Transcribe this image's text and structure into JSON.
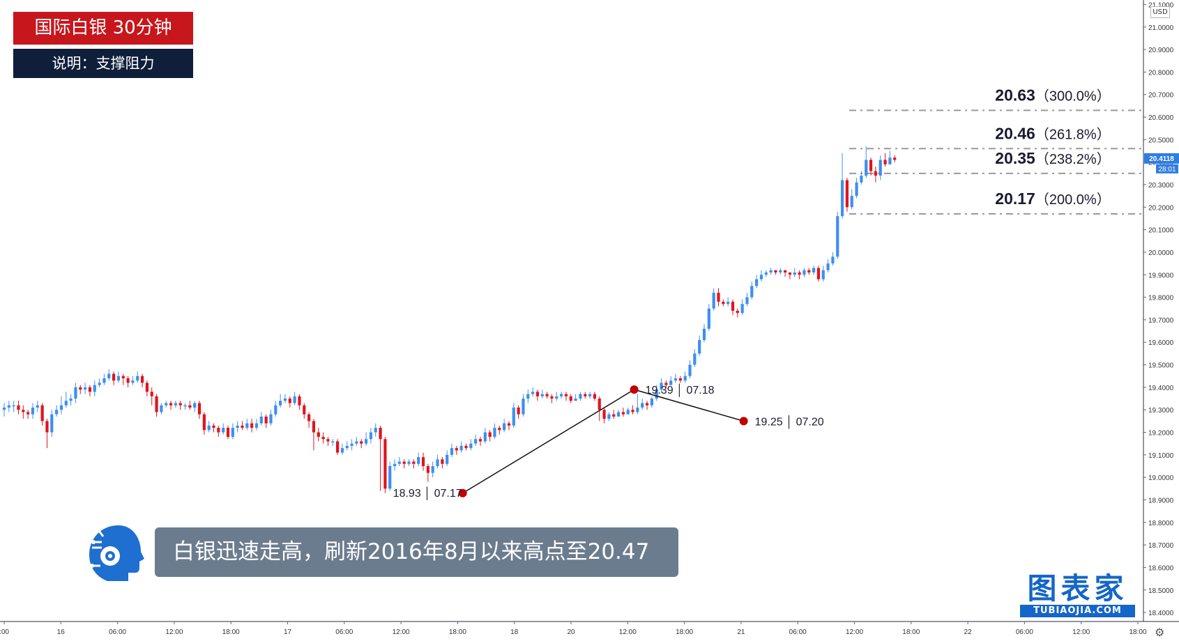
{
  "header": {
    "title": "国际白银 30分钟",
    "subtitle": "说明：支撑阻力"
  },
  "caption": "白银迅速走高，刷新2016年8月以来高点至20.47",
  "logo": {
    "cn": "图表家",
    "en": "TUBIAOJIA.COM"
  },
  "currency_badge": "USD",
  "settings_icon": "gear-icon",
  "colors": {
    "up": "#3d8ff0",
    "down": "#e0141e",
    "marker": "#c00000",
    "title_bg": "#c8161d",
    "subtitle_bg": "#0f1f3a",
    "caption_bg": "#6c7c8f",
    "fib_line": "#9a9a9a",
    "price_label_bg": "#2f7de1",
    "logo": "#1466c8"
  },
  "chart_data": {
    "type": "candlestick",
    "symbol": "XAGUSD",
    "timeframe": "30m",
    "ylim": [
      18.36,
      21.12
    ],
    "y_ticks": [
      "21.1000",
      "21.0000",
      "20.9000",
      "20.8000",
      "20.7000",
      "20.6000",
      "20.5000",
      "20.4000",
      "20.3000",
      "20.2000",
      "20.1000",
      "20.0000",
      "19.9000",
      "19.8000",
      "19.7000",
      "19.6000",
      "19.5000",
      "19.4000",
      "19.3000",
      "19.2000",
      "19.1000",
      "19.0000",
      "18.9000",
      "18.8000",
      "18.7000",
      "18.6000",
      "18.5000",
      "18.4000"
    ],
    "x_ticks": [
      ":00",
      "16",
      "06:00",
      "12:00",
      "18:00",
      "17",
      "06:00",
      "12:00",
      "18:00",
      "18",
      "20",
      "12:00",
      "18:00",
      "21",
      "06:00",
      "12:00",
      "18:00",
      "22",
      "06:00",
      "12:00",
      "18:00"
    ],
    "current_price": "20.4118",
    "countdown": "28:01",
    "fib_levels": [
      {
        "price": "20.63",
        "ratio": "（300.0%）"
      },
      {
        "price": "20.46",
        "ratio": "（261.8%）"
      },
      {
        "price": "20.35",
        "ratio": "（238.2%）"
      },
      {
        "price": "20.17",
        "ratio": "（200.0%）"
      }
    ],
    "swing_points": [
      {
        "index": 96,
        "price": "18.93",
        "date": "07.17"
      },
      {
        "index": 132,
        "price": "19.39",
        "date": "07.18"
      },
      {
        "index": 155,
        "price": "19.25",
        "date": "07.20"
      }
    ],
    "candles": [
      [
        19.3,
        19.31,
        19.33,
        19.27
      ],
      [
        19.31,
        19.32,
        19.34,
        19.29
      ],
      [
        19.32,
        19.32,
        19.34,
        19.29
      ],
      [
        19.32,
        19.3,
        19.34,
        19.28
      ],
      [
        19.3,
        19.29,
        19.32,
        19.26
      ],
      [
        19.29,
        19.28,
        19.3,
        19.26
      ],
      [
        19.28,
        19.31,
        19.33,
        19.26
      ],
      [
        19.31,
        19.32,
        19.34,
        19.29
      ],
      [
        19.32,
        19.25,
        19.33,
        19.23
      ],
      [
        19.25,
        19.2,
        19.26,
        19.13
      ],
      [
        19.2,
        19.28,
        19.3,
        19.18
      ],
      [
        19.28,
        19.3,
        19.32,
        19.27
      ],
      [
        19.3,
        19.32,
        19.36,
        19.28
      ],
      [
        19.32,
        19.34,
        19.38,
        19.31
      ],
      [
        19.34,
        19.35,
        19.37,
        19.32
      ],
      [
        19.35,
        19.4,
        19.42,
        19.33
      ],
      [
        19.4,
        19.39,
        19.41,
        19.37
      ],
      [
        19.39,
        19.4,
        19.42,
        19.37
      ],
      [
        19.4,
        19.38,
        19.41,
        19.36
      ],
      [
        19.38,
        19.41,
        19.43,
        19.36
      ],
      [
        19.41,
        19.42,
        19.44,
        19.4
      ],
      [
        19.42,
        19.44,
        19.46,
        19.41
      ],
      [
        19.44,
        19.46,
        19.48,
        19.43
      ],
      [
        19.46,
        19.43,
        19.47,
        19.41
      ],
      [
        19.43,
        19.45,
        19.47,
        19.42
      ],
      [
        19.45,
        19.44,
        19.46,
        19.41
      ],
      [
        19.44,
        19.42,
        19.45,
        19.4
      ],
      [
        19.42,
        19.43,
        19.45,
        19.41
      ],
      [
        19.43,
        19.45,
        19.47,
        19.42
      ],
      [
        19.45,
        19.42,
        19.46,
        19.4
      ],
      [
        19.42,
        19.38,
        19.43,
        19.36
      ],
      [
        19.38,
        19.36,
        19.4,
        19.32
      ],
      [
        19.36,
        19.29,
        19.37,
        19.27
      ],
      [
        19.29,
        19.32,
        19.33,
        19.28
      ],
      [
        19.32,
        19.33,
        19.34,
        19.31
      ],
      [
        19.33,
        19.32,
        19.34,
        19.3
      ],
      [
        19.32,
        19.33,
        19.34,
        19.31
      ],
      [
        19.33,
        19.32,
        19.34,
        19.3
      ],
      [
        19.32,
        19.32,
        19.33,
        19.3
      ],
      [
        19.32,
        19.31,
        19.34,
        19.3
      ],
      [
        19.31,
        19.33,
        19.34,
        19.29
      ],
      [
        19.33,
        19.28,
        19.34,
        19.26
      ],
      [
        19.28,
        19.21,
        19.29,
        19.19
      ],
      [
        19.21,
        19.23,
        19.25,
        19.2
      ],
      [
        19.23,
        19.22,
        19.24,
        19.2
      ],
      [
        19.22,
        19.2,
        19.23,
        19.18
      ],
      [
        19.2,
        19.22,
        19.24,
        19.19
      ],
      [
        19.22,
        19.18,
        19.23,
        19.17
      ],
      [
        19.18,
        19.22,
        19.24,
        19.17
      ],
      [
        19.22,
        19.23,
        19.25,
        19.2
      ],
      [
        19.23,
        19.22,
        19.25,
        19.21
      ],
      [
        19.22,
        19.24,
        19.26,
        19.21
      ],
      [
        19.24,
        19.22,
        19.26,
        19.2
      ],
      [
        19.22,
        19.24,
        19.26,
        19.21
      ],
      [
        19.24,
        19.27,
        19.29,
        19.23
      ],
      [
        19.27,
        19.24,
        19.28,
        19.22
      ],
      [
        19.24,
        19.28,
        19.3,
        19.23
      ],
      [
        19.28,
        19.32,
        19.34,
        19.27
      ],
      [
        19.32,
        19.34,
        19.37,
        19.31
      ],
      [
        19.34,
        19.35,
        19.37,
        19.33
      ],
      [
        19.35,
        19.33,
        19.36,
        19.31
      ],
      [
        19.33,
        19.36,
        19.38,
        19.32
      ],
      [
        19.36,
        19.32,
        19.37,
        19.3
      ],
      [
        19.32,
        19.28,
        19.33,
        19.26
      ],
      [
        19.28,
        19.25,
        19.29,
        19.22
      ],
      [
        19.25,
        19.2,
        19.26,
        19.12
      ],
      [
        19.2,
        19.18,
        19.22,
        19.16
      ],
      [
        19.18,
        19.17,
        19.2,
        19.15
      ],
      [
        19.17,
        19.16,
        19.18,
        19.14
      ],
      [
        19.16,
        19.16,
        19.17,
        19.14
      ],
      [
        19.16,
        19.11,
        19.17,
        19.1
      ],
      [
        19.11,
        19.13,
        19.15,
        19.1
      ],
      [
        19.13,
        19.14,
        19.16,
        19.12
      ],
      [
        19.14,
        19.15,
        19.17,
        19.12
      ],
      [
        19.15,
        19.16,
        19.18,
        19.14
      ],
      [
        19.16,
        19.15,
        19.17,
        19.13
      ],
      [
        19.15,
        19.17,
        19.2,
        19.14
      ],
      [
        19.17,
        19.2,
        19.22,
        19.15
      ],
      [
        19.2,
        19.22,
        19.24,
        19.18
      ],
      [
        19.22,
        19.17,
        19.23,
        18.94
      ],
      [
        19.17,
        18.95,
        19.18,
        18.93
      ],
      [
        18.95,
        19.05,
        19.07,
        18.94
      ],
      [
        19.05,
        19.06,
        19.08,
        19.03
      ],
      [
        19.06,
        19.07,
        19.09,
        19.05
      ],
      [
        19.07,
        19.06,
        19.08,
        19.04
      ],
      [
        19.06,
        19.07,
        19.08,
        19.05
      ],
      [
        19.07,
        19.06,
        19.08,
        19.04
      ],
      [
        19.06,
        19.09,
        19.11,
        19.05
      ],
      [
        19.09,
        19.05,
        19.11,
        19.03
      ],
      [
        19.05,
        19.02,
        19.06,
        18.98
      ],
      [
        19.02,
        19.05,
        19.07,
        19.0
      ],
      [
        19.05,
        19.08,
        19.1,
        19.04
      ],
      [
        19.08,
        19.06,
        19.09,
        19.04
      ],
      [
        19.06,
        19.1,
        19.12,
        19.05
      ],
      [
        19.1,
        19.13,
        19.15,
        19.09
      ],
      [
        19.13,
        19.12,
        19.14,
        19.1
      ],
      [
        19.12,
        19.14,
        19.16,
        19.11
      ],
      [
        19.14,
        19.13,
        19.15,
        19.12
      ],
      [
        19.13,
        19.15,
        19.17,
        19.12
      ],
      [
        19.15,
        19.17,
        19.19,
        19.14
      ],
      [
        19.17,
        19.16,
        19.18,
        19.14
      ],
      [
        19.16,
        19.2,
        19.22,
        19.15
      ],
      [
        19.2,
        19.18,
        19.21,
        19.16
      ],
      [
        19.18,
        19.22,
        19.24,
        19.17
      ],
      [
        19.22,
        19.21,
        19.23,
        19.19
      ],
      [
        19.21,
        19.24,
        19.26,
        19.2
      ],
      [
        19.24,
        19.23,
        19.25,
        19.21
      ],
      [
        19.23,
        19.31,
        19.33,
        19.22
      ],
      [
        19.31,
        19.28,
        19.32,
        19.26
      ],
      [
        19.28,
        19.35,
        19.37,
        19.27
      ],
      [
        19.35,
        19.37,
        19.39,
        19.33
      ],
      [
        19.37,
        19.38,
        19.4,
        19.36
      ],
      [
        19.38,
        19.36,
        19.39,
        19.34
      ],
      [
        19.36,
        19.37,
        19.39,
        19.35
      ],
      [
        19.37,
        19.36,
        19.38,
        19.35
      ],
      [
        19.36,
        19.35,
        19.37,
        19.33
      ],
      [
        19.35,
        19.36,
        19.38,
        19.34
      ],
      [
        19.36,
        19.37,
        19.38,
        19.35
      ],
      [
        19.37,
        19.36,
        19.38,
        19.34
      ],
      [
        19.36,
        19.34,
        19.37,
        19.33
      ],
      [
        19.34,
        19.35,
        19.37,
        19.34
      ],
      [
        19.35,
        19.37,
        19.38,
        19.34
      ],
      [
        19.37,
        19.36,
        19.38,
        19.35
      ],
      [
        19.36,
        19.37,
        19.38,
        19.35
      ],
      [
        19.37,
        19.35,
        19.38,
        19.34
      ],
      [
        19.35,
        19.3,
        19.36,
        19.25
      ],
      [
        19.3,
        19.26,
        19.31,
        19.24
      ],
      [
        19.26,
        19.28,
        19.29,
        19.25
      ],
      [
        19.28,
        19.27,
        19.3,
        19.26
      ],
      [
        19.27,
        19.29,
        19.3,
        19.27
      ],
      [
        19.29,
        19.28,
        19.31,
        19.27
      ],
      [
        19.28,
        19.3,
        19.31,
        19.28
      ],
      [
        19.3,
        19.29,
        19.32,
        19.28
      ],
      [
        19.29,
        19.31,
        19.37,
        19.28
      ],
      [
        19.31,
        19.33,
        19.35,
        19.3
      ],
      [
        19.33,
        19.32,
        19.34,
        19.3
      ],
      [
        19.32,
        19.35,
        19.36,
        19.31
      ],
      [
        19.35,
        19.39,
        19.41,
        19.34
      ],
      [
        19.39,
        19.42,
        19.44,
        19.38
      ],
      [
        19.42,
        19.41,
        19.43,
        19.4
      ],
      [
        19.41,
        19.43,
        19.45,
        19.41
      ],
      [
        19.43,
        19.44,
        19.46,
        19.42
      ],
      [
        19.44,
        19.43,
        19.45,
        19.42
      ],
      [
        19.43,
        19.45,
        19.47,
        19.42
      ],
      [
        19.45,
        19.5,
        19.52,
        19.44
      ],
      [
        19.5,
        19.55,
        19.57,
        19.49
      ],
      [
        19.55,
        19.61,
        19.63,
        19.54
      ],
      [
        19.61,
        19.66,
        19.68,
        19.6
      ],
      [
        19.66,
        19.75,
        19.77,
        19.65
      ],
      [
        19.75,
        19.82,
        19.84,
        19.74
      ],
      [
        19.82,
        19.78,
        19.84,
        19.76
      ],
      [
        19.78,
        19.77,
        19.79,
        19.76
      ],
      [
        19.77,
        19.78,
        19.8,
        19.76
      ],
      [
        19.78,
        19.74,
        19.79,
        19.72
      ],
      [
        19.74,
        19.73,
        19.75,
        19.71
      ],
      [
        19.73,
        19.77,
        19.79,
        19.72
      ],
      [
        19.77,
        19.8,
        19.82,
        19.76
      ],
      [
        19.8,
        19.85,
        19.87,
        19.79
      ],
      [
        19.85,
        19.88,
        19.9,
        19.84
      ],
      [
        19.88,
        19.9,
        19.92,
        19.87
      ],
      [
        19.9,
        19.91,
        19.92,
        19.89
      ],
      [
        19.91,
        19.92,
        19.93,
        19.9
      ],
      [
        19.92,
        19.91,
        19.92,
        19.9
      ],
      [
        19.91,
        19.92,
        19.93,
        19.9
      ],
      [
        19.92,
        19.91,
        19.92,
        19.89
      ],
      [
        19.91,
        19.9,
        19.91,
        19.88
      ],
      [
        19.9,
        19.91,
        19.93,
        19.89
      ],
      [
        19.91,
        19.9,
        19.92,
        19.88
      ],
      [
        19.9,
        19.92,
        19.93,
        19.89
      ],
      [
        19.92,
        19.91,
        19.93,
        19.9
      ],
      [
        19.91,
        19.93,
        19.94,
        19.9
      ],
      [
        19.93,
        19.88,
        19.94,
        19.87
      ],
      [
        19.88,
        19.92,
        19.94,
        19.87
      ],
      [
        19.92,
        19.95,
        19.97,
        19.91
      ],
      [
        19.95,
        19.98,
        20.0,
        19.94
      ],
      [
        19.98,
        20.16,
        20.18,
        19.97
      ],
      [
        20.16,
        20.32,
        20.44,
        20.15
      ],
      [
        20.32,
        20.2,
        20.33,
        20.18
      ],
      [
        20.2,
        20.25,
        20.28,
        20.19
      ],
      [
        20.25,
        20.31,
        20.33,
        20.24
      ],
      [
        20.31,
        20.34,
        20.36,
        20.3
      ],
      [
        20.34,
        20.41,
        20.47,
        20.33
      ],
      [
        20.41,
        20.36,
        20.42,
        20.34
      ],
      [
        20.36,
        20.34,
        20.38,
        20.31
      ],
      [
        20.34,
        20.41,
        20.43,
        20.32
      ],
      [
        20.41,
        20.39,
        20.44,
        20.38
      ],
      [
        20.39,
        20.42,
        20.45,
        20.39
      ],
      [
        20.42,
        20.41,
        20.43,
        20.4
      ]
    ]
  }
}
